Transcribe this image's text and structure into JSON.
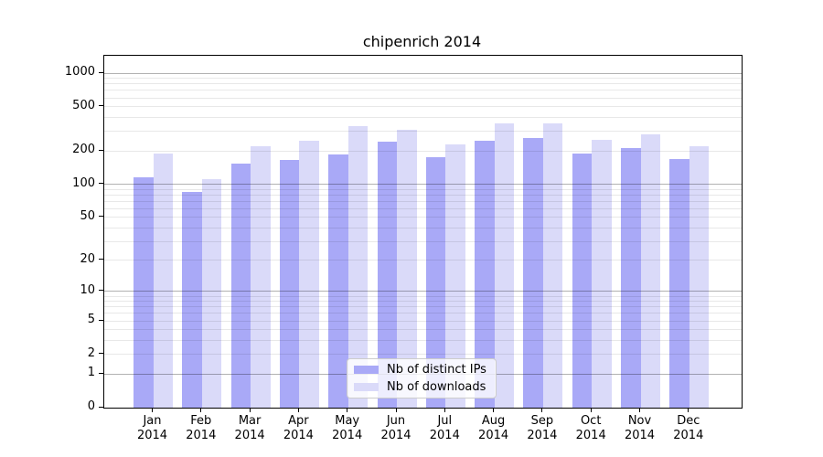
{
  "chart": {
    "title": "chipenrich 2014"
  },
  "chart_data": {
    "type": "bar",
    "title": "chipenrich 2014",
    "categories": [
      "Jan 2014",
      "Feb 2014",
      "Mar 2014",
      "Apr 2014",
      "May 2014",
      "Jun 2014",
      "Jul 2014",
      "Aug 2014",
      "Sep 2014",
      "Oct 2014",
      "Nov 2014",
      "Dec 2014"
    ],
    "series": [
      {
        "name": "Nb of distinct IPs",
        "color": "#a9a9f7",
        "values": [
          115,
          85,
          154,
          167,
          184,
          243,
          176,
          245,
          261,
          190,
          212,
          169
        ]
      },
      {
        "name": "Nb of downloads",
        "color": "#dadaf9",
        "values": [
          188,
          111,
          220,
          249,
          334,
          310,
          230,
          351,
          355,
          253,
          283,
          221
        ]
      }
    ],
    "xlabel": "",
    "ylabel": "",
    "yscale": "log1p",
    "ylim": [
      0,
      1433
    ],
    "yticks": [
      0,
      1,
      2,
      5,
      10,
      20,
      50,
      100,
      200,
      500,
      1000
    ],
    "grid": true,
    "grid_major_at": [
      1,
      10,
      100,
      1000
    ],
    "legend_position": "lower center",
    "colors": {
      "grid_major": "rgba(0,0,0,0.30)",
      "grid_minor": "rgba(0,0,0,0.09)",
      "axis": "#000000",
      "text": "#000000",
      "background": "#ffffff"
    }
  }
}
